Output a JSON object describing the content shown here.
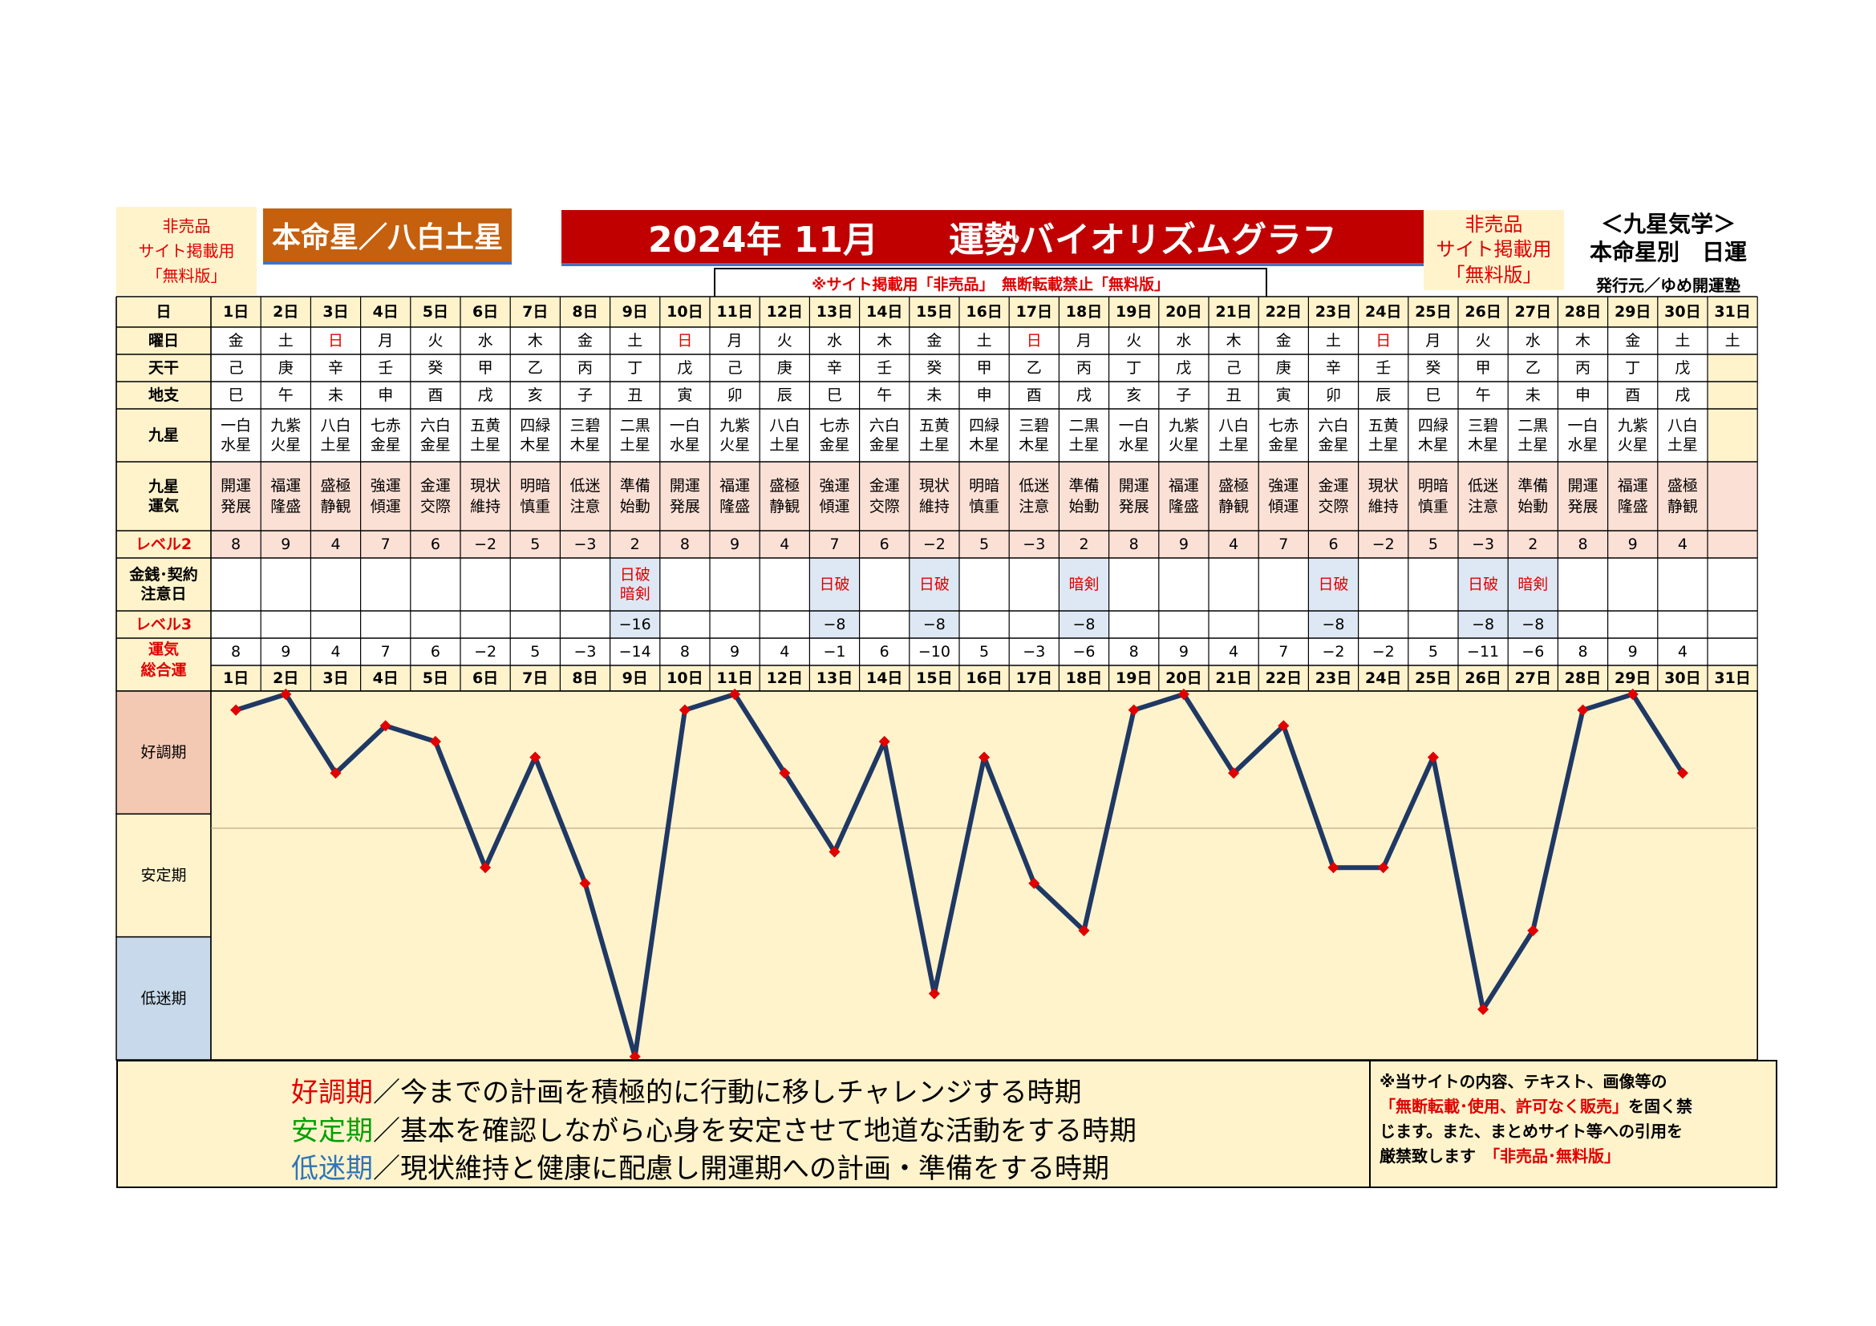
{
  "header": {
    "left_note": [
      "非売品",
      "サイト掲載用",
      "「無料版」"
    ],
    "honmei": "本命星／八白土星",
    "title": "2024年 11月　　運勢バイオリズムグラフ",
    "warning": "※サイト掲載用「非売品」　無断転載禁止「無料版」",
    "right_note": [
      "非売品",
      "サイト掲載用",
      "「無料版」"
    ],
    "right_title": [
      "＜九星気学＞",
      "本命星別　日運"
    ],
    "publisher": "発行元／ゆめ開運塾"
  },
  "table": {
    "row_labels": {
      "day": "日",
      "weekday": "曜日",
      "tenkan": "天干",
      "chishi": "地支",
      "kyusei": "九星",
      "unki": [
        "九星",
        "運気"
      ],
      "level2": "レベル2",
      "money": [
        "金銭･契約",
        "注意日"
      ],
      "level3": "レベル3",
      "total": [
        "運気",
        "総合運"
      ]
    },
    "days": [
      "1日",
      "2日",
      "3日",
      "4日",
      "5日",
      "6日",
      "7日",
      "8日",
      "9日",
      "10日",
      "11日",
      "12日",
      "13日",
      "14日",
      "15日",
      "16日",
      "17日",
      "18日",
      "19日",
      "20日",
      "21日",
      "22日",
      "23日",
      "24日",
      "25日",
      "26日",
      "27日",
      "28日",
      "29日",
      "30日",
      "31日"
    ],
    "weekdays": [
      "金",
      "土",
      "日",
      "月",
      "火",
      "水",
      "木",
      "金",
      "土",
      "日",
      "月",
      "火",
      "水",
      "木",
      "金",
      "土",
      "日",
      "月",
      "火",
      "水",
      "木",
      "金",
      "土",
      "日",
      "月",
      "火",
      "水",
      "木",
      "金",
      "土",
      "土"
    ],
    "tenkan": [
      "己",
      "庚",
      "辛",
      "壬",
      "癸",
      "甲",
      "乙",
      "丙",
      "丁",
      "戊",
      "己",
      "庚",
      "辛",
      "壬",
      "癸",
      "甲",
      "乙",
      "丙",
      "丁",
      "戊",
      "己",
      "庚",
      "辛",
      "壬",
      "癸",
      "甲",
      "乙",
      "丙",
      "丁",
      "戊",
      ""
    ],
    "chishi": [
      "巳",
      "午",
      "未",
      "申",
      "酉",
      "戌",
      "亥",
      "子",
      "丑",
      "寅",
      "卯",
      "辰",
      "巳",
      "午",
      "未",
      "申",
      "酉",
      "戌",
      "亥",
      "子",
      "丑",
      "寅",
      "卯",
      "辰",
      "巳",
      "午",
      "未",
      "申",
      "酉",
      "戌",
      ""
    ],
    "kyusei": [
      [
        "一白",
        "水星"
      ],
      [
        "九紫",
        "火星"
      ],
      [
        "八白",
        "土星"
      ],
      [
        "七赤",
        "金星"
      ],
      [
        "六白",
        "金星"
      ],
      [
        "五黄",
        "土星"
      ],
      [
        "四緑",
        "木星"
      ],
      [
        "三碧",
        "木星"
      ],
      [
        "二黒",
        "土星"
      ],
      [
        "一白",
        "水星"
      ],
      [
        "九紫",
        "火星"
      ],
      [
        "八白",
        "土星"
      ],
      [
        "七赤",
        "金星"
      ],
      [
        "六白",
        "金星"
      ],
      [
        "五黄",
        "土星"
      ],
      [
        "四緑",
        "木星"
      ],
      [
        "三碧",
        "木星"
      ],
      [
        "二黒",
        "土星"
      ],
      [
        "一白",
        "水星"
      ],
      [
        "九紫",
        "火星"
      ],
      [
        "八白",
        "土星"
      ],
      [
        "七赤",
        "金星"
      ],
      [
        "六白",
        "金星"
      ],
      [
        "五黄",
        "土星"
      ],
      [
        "四緑",
        "木星"
      ],
      [
        "三碧",
        "木星"
      ],
      [
        "二黒",
        "土星"
      ],
      [
        "一白",
        "水星"
      ],
      [
        "九紫",
        "火星"
      ],
      [
        "八白",
        "土星"
      ],
      [
        "",
        ""
      ]
    ],
    "unki": [
      [
        "開運",
        "発展"
      ],
      [
        "福運",
        "隆盛"
      ],
      [
        "盛極",
        "静観"
      ],
      [
        "強運",
        "傾運"
      ],
      [
        "金運",
        "交際"
      ],
      [
        "現状",
        "維持"
      ],
      [
        "明暗",
        "慎重"
      ],
      [
        "低迷",
        "注意"
      ],
      [
        "準備",
        "始動"
      ],
      [
        "開運",
        "発展"
      ],
      [
        "福運",
        "隆盛"
      ],
      [
        "盛極",
        "静観"
      ],
      [
        "強運",
        "傾運"
      ],
      [
        "金運",
        "交際"
      ],
      [
        "現状",
        "維持"
      ],
      [
        "明暗",
        "慎重"
      ],
      [
        "低迷",
        "注意"
      ],
      [
        "準備",
        "始動"
      ],
      [
        "開運",
        "発展"
      ],
      [
        "福運",
        "隆盛"
      ],
      [
        "盛極",
        "静観"
      ],
      [
        "強運",
        "傾運"
      ],
      [
        "金運",
        "交際"
      ],
      [
        "現状",
        "維持"
      ],
      [
        "明暗",
        "慎重"
      ],
      [
        "低迷",
        "注意"
      ],
      [
        "準備",
        "始動"
      ],
      [
        "開運",
        "発展"
      ],
      [
        "福運",
        "隆盛"
      ],
      [
        "盛極",
        "静観"
      ],
      [
        "",
        ""
      ]
    ],
    "level2": [
      "8",
      "9",
      "4",
      "7",
      "6",
      "−2",
      "5",
      "−3",
      "2",
      "8",
      "9",
      "4",
      "7",
      "6",
      "−2",
      "5",
      "−3",
      "2",
      "8",
      "9",
      "4",
      "7",
      "6",
      "−2",
      "5",
      "−3",
      "2",
      "8",
      "9",
      "4",
      ""
    ],
    "money": [
      [],
      [],
      [],
      [],
      [],
      [],
      [],
      [],
      [
        "日破",
        "暗剣"
      ],
      [],
      [],
      [],
      [
        "日破"
      ],
      [],
      [
        "日破"
      ],
      [],
      [],
      [
        "暗剣"
      ],
      [],
      [],
      [],
      [],
      [
        "日破"
      ],
      [],
      [],
      [
        "日破"
      ],
      [
        "暗剣"
      ],
      [],
      [],
      [],
      []
    ],
    "level3": [
      "",
      "",
      "",
      "",
      "",
      "",
      "",
      "",
      "−16",
      "",
      "",
      "",
      "−8",
      "",
      "−8",
      "",
      "",
      "−8",
      "",
      "",
      "",
      "",
      "−8",
      "",
      "",
      "−8",
      "−8",
      "",
      "",
      "",
      ""
    ],
    "total": [
      "8",
      "9",
      "4",
      "7",
      "6",
      "−2",
      "5",
      "−3",
      "−14",
      "8",
      "9",
      "4",
      "−1",
      "6",
      "−10",
      "5",
      "−3",
      "−6",
      "8",
      "9",
      "4",
      "7",
      "−2",
      "−2",
      "5",
      "−11",
      "−6",
      "8",
      "9",
      "4",
      ""
    ]
  },
  "chart_data": {
    "type": "line",
    "x": [
      "1日",
      "2日",
      "3日",
      "4日",
      "5日",
      "6日",
      "7日",
      "8日",
      "9日",
      "10日",
      "11日",
      "12日",
      "13日",
      "14日",
      "15日",
      "16日",
      "17日",
      "18日",
      "19日",
      "20日",
      "21日",
      "22日",
      "23日",
      "24日",
      "25日",
      "26日",
      "27日",
      "28日",
      "29日",
      "30日",
      "31日"
    ],
    "values": [
      8,
      9,
      4,
      7,
      6,
      -2,
      5,
      -3,
      -14,
      8,
      9,
      4,
      -1,
      6,
      -10,
      5,
      -3,
      -6,
      8,
      9,
      4,
      7,
      -2,
      -2,
      5,
      -11,
      -6,
      8,
      9,
      4,
      null
    ],
    "ylim": [
      -14,
      9
    ],
    "bands": [
      "好調期",
      "安定期",
      "低迷期"
    ],
    "line_color": "#1f3864",
    "marker_color": "#e00000",
    "band_colors": [
      "#f4c9b4",
      "#fff3cc",
      "#c7d9ea"
    ]
  },
  "legend": {
    "lines": [
      {
        "term": "好調期",
        "text": "／今までの計画を積極的に行動に移しチャレンジする時期",
        "color": "#e00000"
      },
      {
        "term": "安定期",
        "text": "／基本を確認しながら心身を安定させて地道な活動をする時期",
        "color": "#00a000"
      },
      {
        "term": "低迷期",
        "text": "／現状維持と健康に配慮し開運期への計画・準備をする時期",
        "color": "#2e75b6"
      }
    ]
  },
  "notice": {
    "line1": "※当サイトの内容、テキスト、画像等の",
    "line2_red": "「無断転載･使用、許可なく販売」",
    "line2_tail": "を固く禁",
    "line3": "じます。また、まとめサイト等への引用を",
    "line4_head": "厳禁致します",
    "line4_red": "「非売品･無料版」"
  },
  "colors": {
    "cream": "#fff3cc",
    "pink": "#fbe0d6",
    "blue_cell": "#dde8f4",
    "title_red": "#c00000",
    "honmei_orange": "#c5600f",
    "sunday_red": "#e00000"
  }
}
